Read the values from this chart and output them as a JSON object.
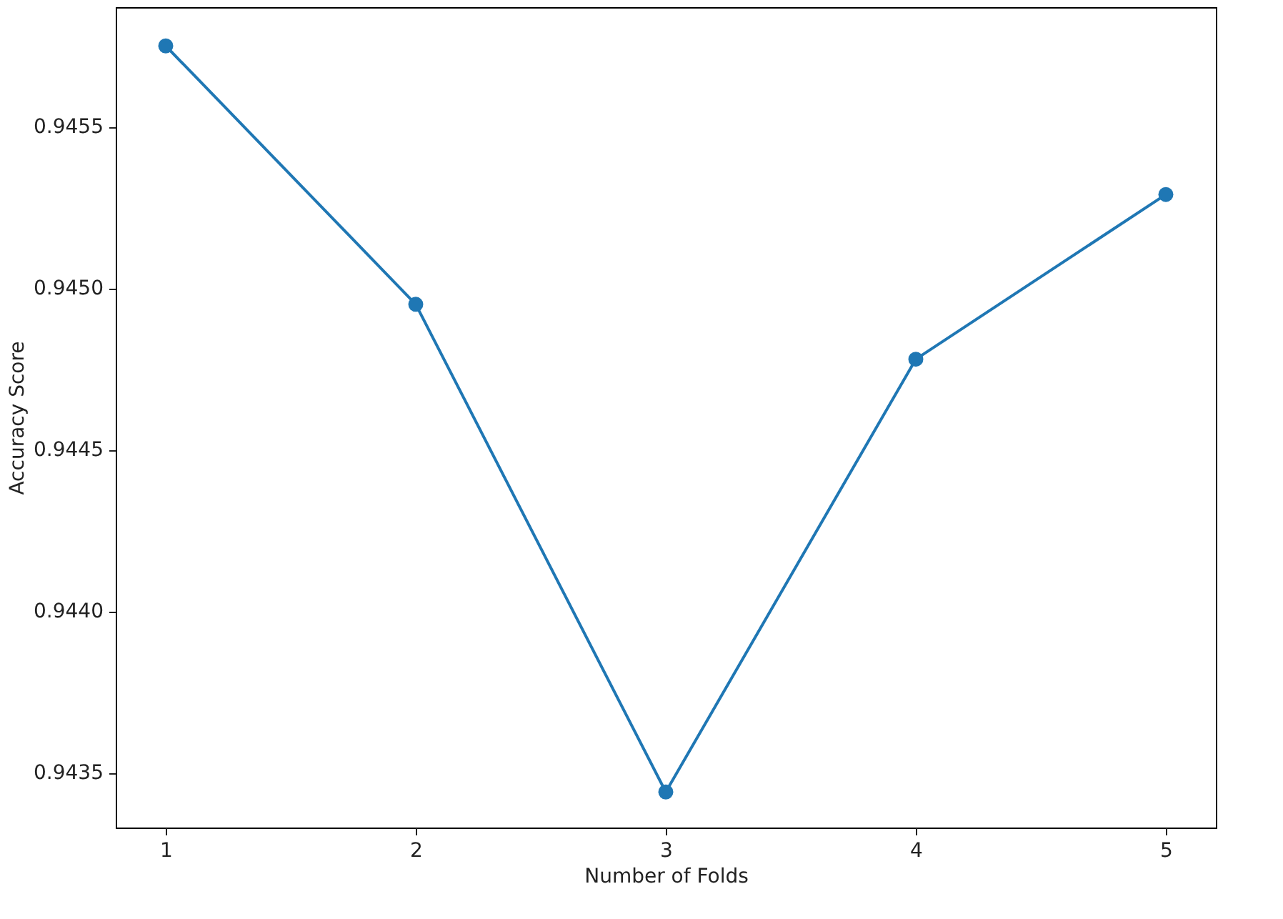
{
  "chart_data": {
    "type": "line",
    "xlabel": "Number of Folds",
    "ylabel": "Accuracy Score",
    "x": [
      1,
      2,
      3,
      4,
      5
    ],
    "series": [
      {
        "color": "#1f77b4",
        "values": [
          0.94575,
          0.94495,
          0.94344,
          0.94478,
          0.94529
        ]
      }
    ],
    "xlim": [
      0.8,
      5.2
    ],
    "xticks": [
      1,
      2,
      3,
      4,
      5
    ],
    "ylim": [
      0.94333,
      0.94587
    ],
    "yticks": [
      0.9435,
      {
        "value": 0.944,
        "label": "0.9440"
      },
      0.9445,
      {
        "value": 0.945,
        "label": "0.9450"
      },
      0.9455
    ],
    "marker": "circle",
    "line_style": "solid",
    "grid": false
  }
}
